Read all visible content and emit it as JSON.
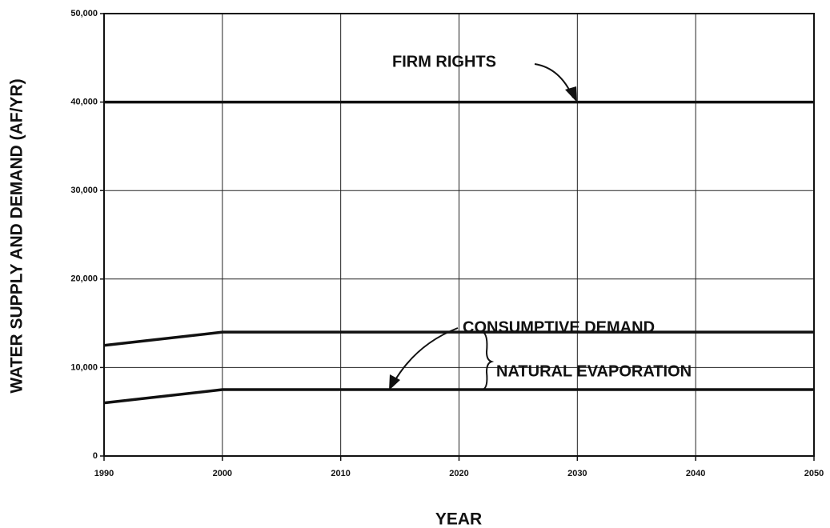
{
  "chart_data": {
    "type": "line",
    "xlabel": "YEAR",
    "ylabel": "WATER SUPPLY AND DEMAND (AF/YR)",
    "annotations": [
      "FIRM RIGHTS",
      "CONSUMPTIVE DEMAND",
      "NATURAL EVAPORATION"
    ],
    "series": [
      {
        "x": [
          1990,
          2050
        ],
        "values": [
          40000,
          40000
        ],
        "color": "#111111"
      },
      {
        "x": [
          1990,
          2000,
          2050
        ],
        "values": [
          12500,
          14000,
          14000
        ],
        "color": "#111111"
      },
      {
        "x": [
          1990,
          2000,
          2050
        ],
        "values": [
          6000,
          7500,
          7500
        ],
        "color": "#111111"
      }
    ],
    "xlim": [
      1990,
      2050
    ],
    "xticks": [
      1990,
      2000,
      2010,
      2020,
      2030,
      2040,
      2050
    ],
    "ylim": [
      0,
      50000
    ],
    "yticks": [
      0,
      {
        "value": 10000,
        "label": "10,000"
      },
      {
        "value": 20000,
        "label": "20,000"
      },
      {
        "value": 30000,
        "label": "30,000"
      },
      {
        "value": 40000,
        "label": "40,000"
      },
      {
        "value": 50000,
        "label": "50,000"
      }
    ],
    "grid": true
  }
}
